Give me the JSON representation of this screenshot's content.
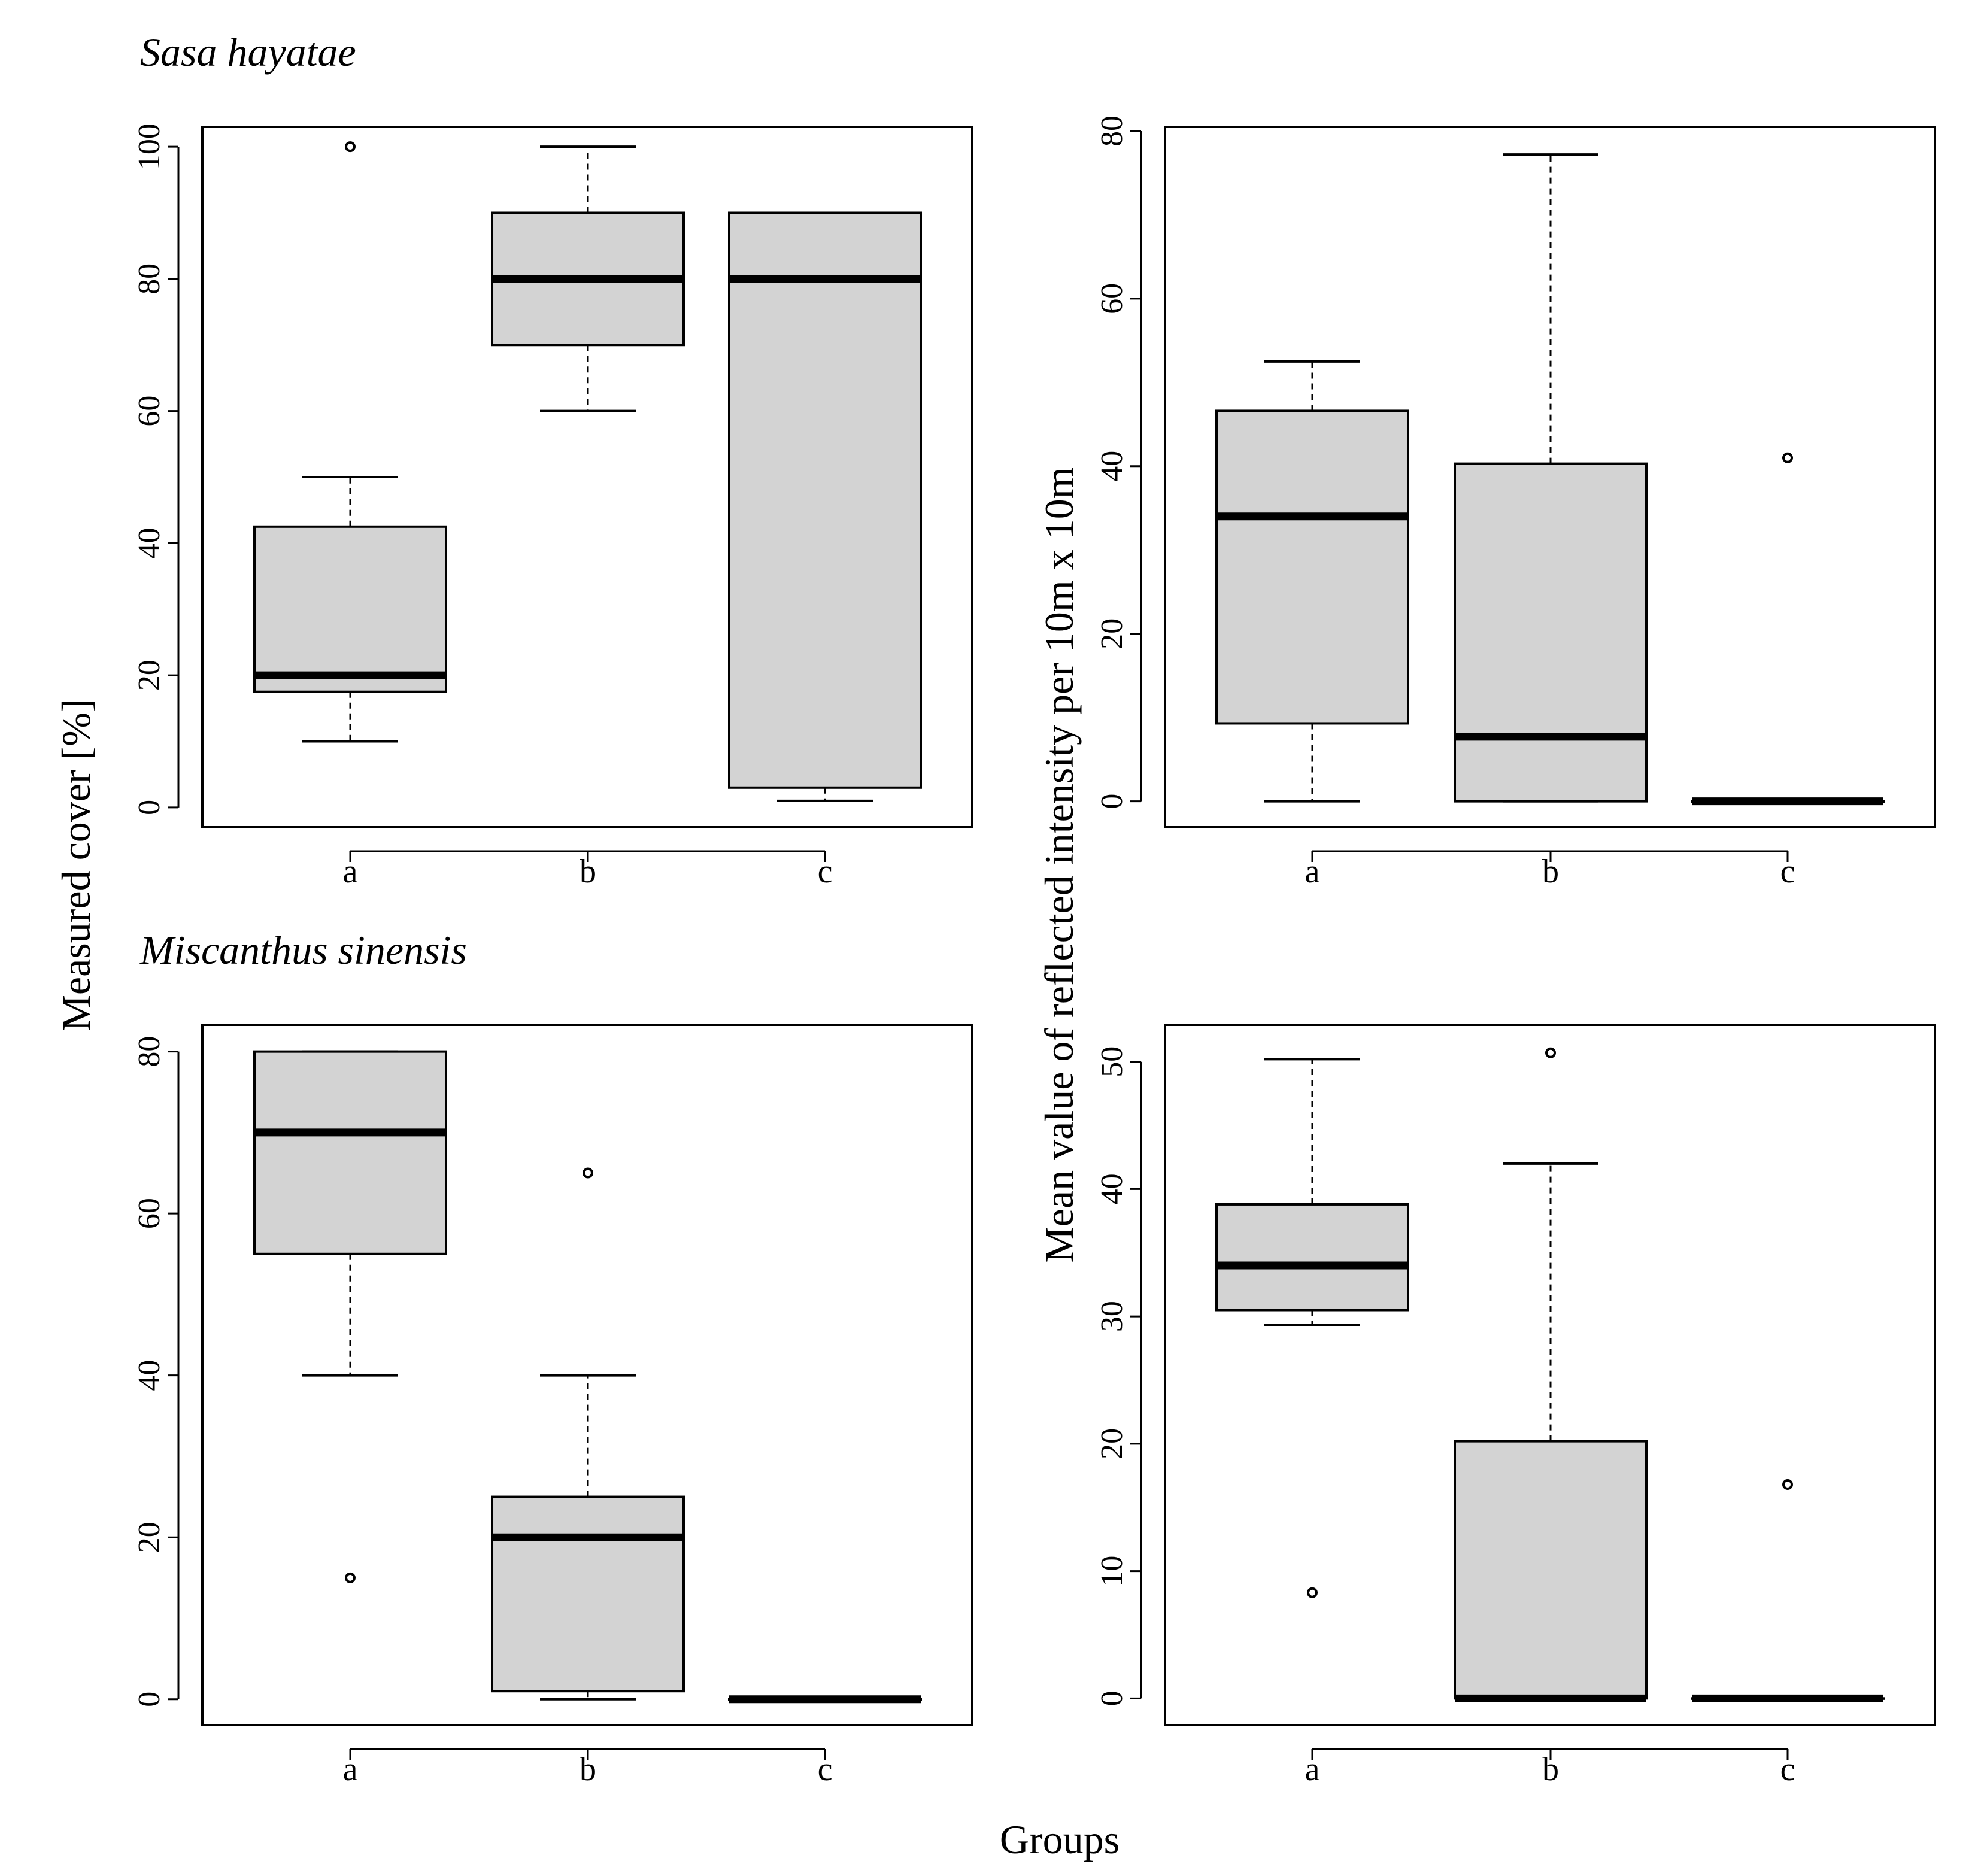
{
  "figure": {
    "xlabel_shared": "Groups",
    "ylabel_left": "Measured cover [%]",
    "ylabel_right": "Mean value of reflected intensity per 10m x 10m"
  },
  "colors": {
    "box_fill": "#d3d3d3",
    "stroke": "#000000",
    "background": "#ffffff"
  },
  "chart_data": [
    {
      "id": "sasa-cover",
      "type": "boxplot",
      "title": "Sasa hayatae",
      "xlabel": "Groups",
      "ylabel": "Measured cover [%]",
      "categories": [
        "a",
        "b",
        "c"
      ],
      "ylim": [
        -3,
        103
      ],
      "yticks": [
        0,
        20,
        40,
        60,
        80,
        100
      ],
      "boxes": [
        {
          "group": "a",
          "whisker_low": 10,
          "q1": 17.5,
          "median": 20,
          "q3": 42.5,
          "whisker_high": 50,
          "outliers": [
            100
          ]
        },
        {
          "group": "b",
          "whisker_low": 60,
          "q1": 70,
          "median": 80,
          "q3": 90,
          "whisker_high": 100,
          "outliers": []
        },
        {
          "group": "c",
          "whisker_low": 1,
          "q1": 3,
          "median": 80,
          "q3": 90,
          "whisker_high": 90,
          "outliers": []
        }
      ]
    },
    {
      "id": "sasa-intensity",
      "type": "boxplot",
      "title": "",
      "xlabel": "Groups",
      "ylabel": "Mean value of reflected intensity per 10m x 10m",
      "categories": [
        "a",
        "b",
        "c"
      ],
      "ylim": [
        -3.1,
        80.5
      ],
      "yticks": [
        0,
        20,
        40,
        60,
        80
      ],
      "boxes": [
        {
          "group": "a",
          "whisker_low": 0,
          "q1": 9.3,
          "median": 34,
          "q3": 46.6,
          "whisker_high": 52.5,
          "outliers": []
        },
        {
          "group": "b",
          "whisker_low": 0,
          "q1": 0,
          "median": 7.7,
          "q3": 40.3,
          "whisker_high": 77.2,
          "outliers": []
        },
        {
          "group": "c",
          "whisker_low": 0,
          "q1": 0,
          "median": 0,
          "q3": 0,
          "whisker_high": 0,
          "outliers": [
            41
          ]
        }
      ]
    },
    {
      "id": "miscanthus-cover",
      "type": "boxplot",
      "title": "Miscanthus sinensis",
      "xlabel": "Groups",
      "ylabel": "Measured cover [%]",
      "categories": [
        "a",
        "b",
        "c"
      ],
      "ylim": [
        -3.2,
        83.3
      ],
      "yticks": [
        0,
        20,
        40,
        60,
        80
      ],
      "boxes": [
        {
          "group": "a",
          "whisker_low": 40,
          "q1": 55,
          "median": 70,
          "q3": 80,
          "whisker_high": 80,
          "outliers": [
            15
          ]
        },
        {
          "group": "b",
          "whisker_low": 0,
          "q1": 1,
          "median": 20,
          "q3": 25,
          "whisker_high": 40,
          "outliers": [
            65
          ]
        },
        {
          "group": "c",
          "whisker_low": 0,
          "q1": 0,
          "median": 0,
          "q3": 0,
          "whisker_high": 0,
          "outliers": []
        }
      ]
    },
    {
      "id": "miscanthus-intensity",
      "type": "boxplot",
      "title": "",
      "xlabel": "Groups",
      "ylabel": "Mean value of reflected intensity per 10m x 10m",
      "categories": [
        "a",
        "b",
        "c"
      ],
      "ylim": [
        -2.1,
        52.9
      ],
      "yticks": [
        0,
        10,
        20,
        30,
        40,
        50
      ],
      "boxes": [
        {
          "group": "a",
          "whisker_low": 29.3,
          "q1": 30.5,
          "median": 34,
          "q3": 38.8,
          "whisker_high": 50.2,
          "outliers": [
            8.3
          ]
        },
        {
          "group": "b",
          "whisker_low": 0,
          "q1": 0,
          "median": 0,
          "q3": 20.2,
          "whisker_high": 42,
          "outliers": [
            50.7
          ]
        },
        {
          "group": "c",
          "whisker_low": 0,
          "q1": 0,
          "median": 0,
          "q3": 0,
          "whisker_high": 0,
          "outliers": [
            16.8
          ]
        }
      ]
    }
  ]
}
